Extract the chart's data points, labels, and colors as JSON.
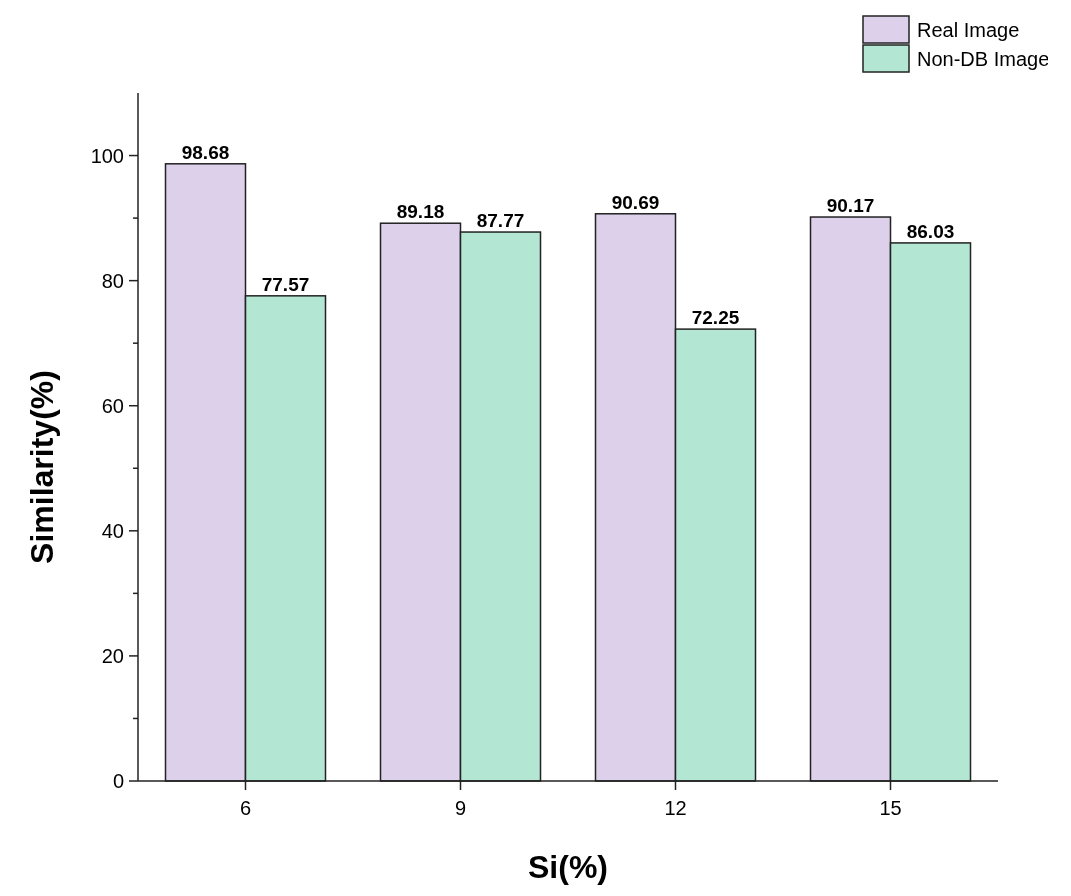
{
  "chart_data": {
    "type": "bar",
    "xlabel": "Si(%)",
    "ylabel": "Similarity(%)",
    "categories": [
      "6",
      "9",
      "12",
      "15"
    ],
    "series": [
      {
        "name": "Real Image",
        "color": "#ddd0ea",
        "values": [
          98.68,
          89.18,
          90.69,
          90.17
        ]
      },
      {
        "name": "Non-DB Image",
        "color": "#b3e6d3",
        "values": [
          77.57,
          87.77,
          72.25,
          86.03
        ]
      }
    ],
    "ylim": [
      0,
      110
    ],
    "yticks": [
      0,
      {
        "value": 10,
        "label": null
      },
      20,
      {
        "value": 30,
        "label": null
      },
      40,
      {
        "value": 50,
        "label": null
      },
      60,
      {
        "value": 70,
        "label": null
      },
      80,
      {
        "value": 90,
        "label": null
      },
      100
    ],
    "data_labels": true,
    "legend": "top right",
    "grid": false
  }
}
